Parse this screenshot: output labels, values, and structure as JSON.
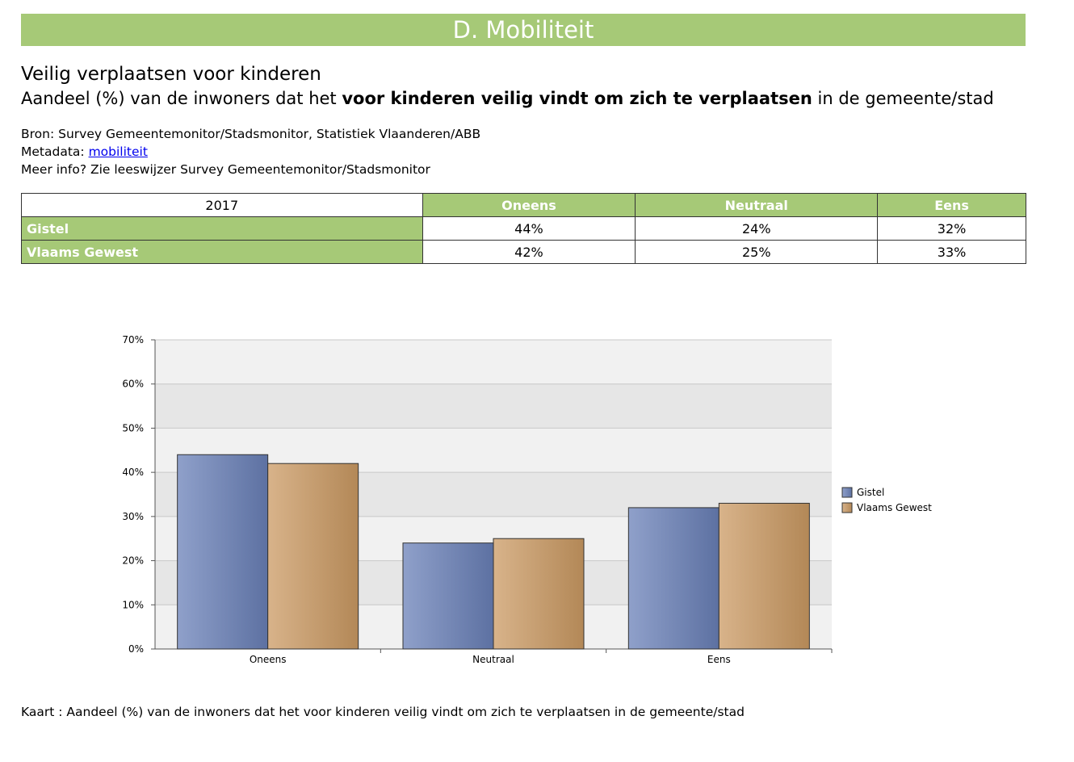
{
  "header": {
    "banner": "D. Mobiliteit"
  },
  "titles": {
    "title": "Veilig verplaatsen voor kinderen",
    "subtitle_pre": "Aandeel (%) van de inwoners dat het ",
    "subtitle_bold": "voor kinderen veilig vindt om zich te verplaatsen",
    "subtitle_post": " in de gemeente/stad"
  },
  "meta": {
    "source": "Bron: Survey Gemeentemonitor/Stadsmonitor, Statistiek Vlaanderen/ABB",
    "metadata_label": "Metadata: ",
    "metadata_link": "mobiliteit",
    "more_info": "Meer info? Zie leeswijzer Survey Gemeentemonitor/Stadsmonitor"
  },
  "table": {
    "year": "2017",
    "columns": [
      "Oneens",
      "Neutraal",
      "Eens"
    ],
    "rows": [
      {
        "label": "Gistel",
        "values": [
          "44%",
          "24%",
          "32%"
        ]
      },
      {
        "label": "Vlaams Gewest",
        "values": [
          "42%",
          "25%",
          "33%"
        ]
      }
    ]
  },
  "chart_data": {
    "type": "bar",
    "categories": [
      "Oneens",
      "Neutraal",
      "Eens"
    ],
    "series": [
      {
        "name": "Gistel",
        "values": [
          44,
          24,
          32
        ],
        "color": "#6a80b8"
      },
      {
        "name": "Vlaams Gewest",
        "values": [
          42,
          25,
          33
        ],
        "color": "#cb9a63"
      }
    ],
    "ylim": [
      0,
      70
    ],
    "yticks": [
      "0%",
      "10%",
      "20%",
      "30%",
      "40%",
      "50%",
      "60%",
      "70%"
    ],
    "legend": "right",
    "grid": true
  },
  "footnote": "Kaart : Aandeel (%) van de inwoners dat het voor kinderen veilig vindt om zich te verplaatsen in de gemeente/stad"
}
